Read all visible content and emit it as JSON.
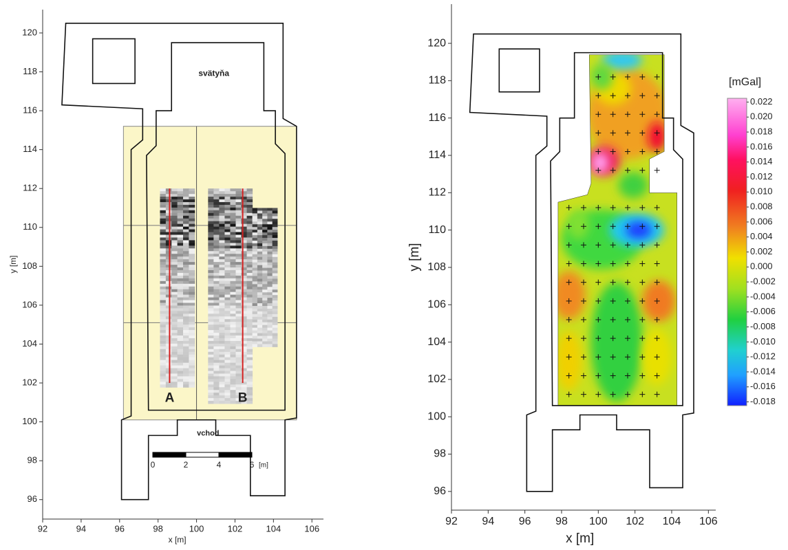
{
  "chart_data": [
    {
      "type": "image",
      "xlabel": "x [m]",
      "ylabel": "y [m]",
      "xlim": [
        92,
        106.6
      ],
      "ylim": [
        95,
        121.2
      ],
      "xticks": [
        92,
        94,
        96,
        98,
        100,
        102,
        104,
        106
      ],
      "yticks": [
        96,
        98,
        100,
        102,
        104,
        106,
        108,
        110,
        112,
        114,
        116,
        118,
        120
      ],
      "annotations": [
        "svätyňa",
        "vchod",
        "A",
        "B"
      ],
      "scale_bar": {
        "ticks": [
          0,
          2,
          4,
          6
        ],
        "unit": "[m]"
      },
      "profile_color": "#d42020"
    },
    {
      "type": "contour",
      "xlabel": "x [m]",
      "ylabel": "y [m]",
      "xlim": [
        92,
        106.4
      ],
      "ylim": [
        95,
        122.1
      ],
      "xticks": [
        92,
        94,
        96,
        98,
        100,
        102,
        104,
        106
      ],
      "yticks": [
        96,
        98,
        100,
        102,
        104,
        106,
        108,
        110,
        112,
        114,
        116,
        118,
        120
      ],
      "colorbar": {
        "title": "[mGal]",
        "lim": [
          -0.0185,
          0.0225
        ],
        "ticks": [
          0.022,
          {
            "value": 0.02,
            "label": "0.020"
          },
          0.018,
          0.016,
          0.014,
          0.012,
          {
            "value": 0.01,
            "label": "0.010"
          },
          0.008,
          0.006,
          0.004,
          0.002,
          {
            "value": 0,
            "label": "0.000"
          },
          -0.002,
          -0.004,
          -0.006,
          -0.008,
          {
            "value": -0.01,
            "label": "-0.010"
          },
          -0.012,
          -0.014,
          -0.016,
          -0.018
        ]
      }
    }
  ]
}
